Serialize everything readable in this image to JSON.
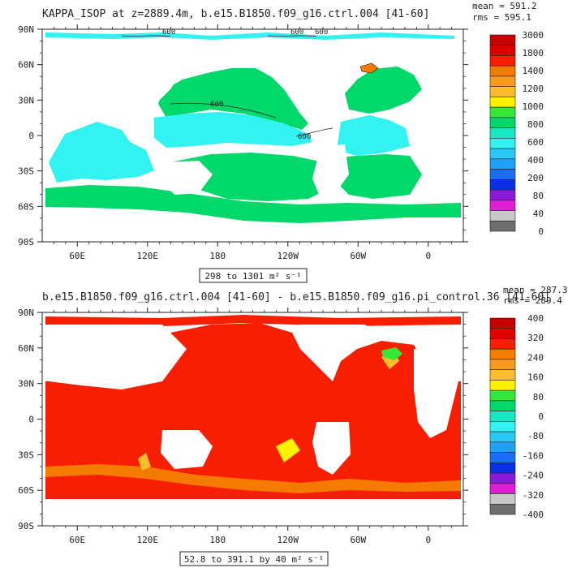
{
  "panels": [
    {
      "title": "KAPPA_ISOP at z=2889.4m, b.e15.B1850.f09_g16.ctrl.004 [41-60]",
      "mean_label": "mean = 591.2",
      "rms_label": "rms = 595.1",
      "range_label": "298 to 1301 m² s⁻¹",
      "contour_labels": [
        "600",
        "600",
        "600",
        "600",
        "600"
      ],
      "colorbar_labels": [
        "3000",
        "1800",
        "1400",
        "1200",
        "1000",
        "800",
        "600",
        "400",
        "200",
        "80",
        "40",
        "0"
      ],
      "colorbar_colors": [
        "#c80000",
        "#e10000",
        "#f81e00",
        "#f57a00",
        "#f79a1e",
        "#f9bd2e",
        "#fff000",
        "#35e835",
        "#00d96a",
        "#19e8c4",
        "#33f2f2",
        "#2ac9f5",
        "#20a0f7",
        "#1a6ef5",
        "#0a2fe6",
        "#8a1ad9",
        "#e01ed6",
        "#c8c8c8",
        "#6e6e6e"
      ]
    },
    {
      "title": "b.e15.B1850.f09_g16.ctrl.004 [41-60] - b.e15.B1850.f09_g16.pi_control.36 [41-60]",
      "mean_label": "mean = 287.3",
      "rms_label": "rms = 289.4",
      "range_label": "52.8 to 391.1 by 40 m² s⁻¹",
      "colorbar_labels": [
        "400",
        "320",
        "240",
        "160",
        "80",
        "0",
        "-80",
        "-160",
        "-240",
        "-320",
        "-400"
      ],
      "colorbar_colors": [
        "#c80000",
        "#e10000",
        "#f81e00",
        "#f57a00",
        "#f79a1e",
        "#f9bd2e",
        "#fff000",
        "#35e835",
        "#00d96a",
        "#19e8c4",
        "#33f2f2",
        "#2ac9f5",
        "#20a0f7",
        "#1a6ef5",
        "#0a2fe6",
        "#8a1ad9",
        "#e01ed6",
        "#c8c8c8",
        "#6e6e6e"
      ]
    }
  ],
  "chart_data": [
    {
      "type": "heatmap",
      "title": "KAPPA_ISOP at z=2889.4m, b.e15.B1850.f09_g16.ctrl.004 [41-60]",
      "mean": 591.2,
      "rms": 595.1,
      "range": [
        298,
        1301
      ],
      "units": "m² s⁻¹",
      "x_ticks": [
        "60E",
        "120E",
        "180",
        "120W",
        "60W",
        "0"
      ],
      "y_ticks": [
        "90N",
        "60N",
        "30N",
        "0",
        "30S",
        "60S",
        "90S"
      ],
      "xlim": [
        30,
        390
      ],
      "ylim": [
        -90,
        90
      ],
      "colorbar_levels": [
        0,
        40,
        80,
        200,
        400,
        600,
        800,
        1000,
        1200,
        1400,
        1800,
        3000
      ],
      "dominant_values": {
        "southern_ocean": 700,
        "north_pacific": 700,
        "indian_ocean": 500,
        "tropical_pacific": 500,
        "north_atlantic": 700
      },
      "contour_level": 600
    },
    {
      "type": "heatmap",
      "title": "b.e15.B1850.f09_g16.ctrl.004 [41-60] - b.e15.B1850.f09_g16.pi_control.36 [41-60]",
      "mean": 287.3,
      "rms": 289.4,
      "range": [
        52.8,
        391.1
      ],
      "interval": 40,
      "units": "m² s⁻¹",
      "x_ticks": [
        "60E",
        "120E",
        "180",
        "120W",
        "60W",
        "0"
      ],
      "y_ticks": [
        "90N",
        "60N",
        "30N",
        "0",
        "30S",
        "60S",
        "90S"
      ],
      "xlim": [
        30,
        390
      ],
      "ylim": [
        -90,
        90
      ],
      "colorbar_levels": [
        -400,
        -320,
        -240,
        -160,
        -80,
        0,
        80,
        160,
        240,
        320,
        400
      ],
      "dominant_values": {
        "global_ocean": 300,
        "southern_ocean_band": 220
      }
    }
  ]
}
